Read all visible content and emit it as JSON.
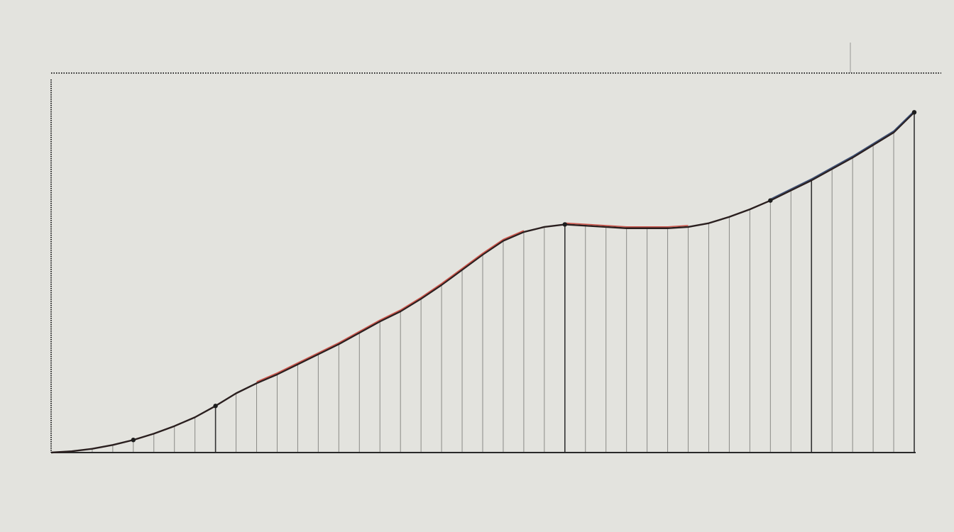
{
  "chart_data": {
    "type": "line",
    "title": "",
    "xlabel": "",
    "ylabel": "",
    "corner_label": "",
    "x": [
      0,
      1,
      2,
      3,
      4,
      5,
      6,
      7,
      8,
      9,
      10,
      11,
      12,
      13,
      14,
      15,
      16,
      17,
      18,
      19,
      20,
      21,
      22,
      23,
      24,
      25,
      26,
      27,
      28,
      29,
      30,
      31,
      32,
      33,
      34,
      35,
      36,
      37,
      38,
      39,
      40,
      41,
      42
    ],
    "values": [
      0.0,
      0.1,
      0.3,
      0.6,
      1.0,
      1.5,
      2.1,
      2.8,
      3.7,
      4.7,
      5.5,
      6.2,
      7.0,
      7.8,
      8.6,
      9.5,
      10.4,
      11.2,
      12.2,
      13.3,
      14.5,
      15.7,
      16.8,
      17.5,
      17.9,
      18.1,
      18.0,
      17.9,
      17.8,
      17.8,
      17.8,
      17.9,
      18.2,
      18.7,
      19.3,
      20.0,
      20.8,
      21.6,
      22.5,
      23.4,
      24.4,
      25.4,
      27.0
    ],
    "highlight_ranges": [
      {
        "color": "#c8473d",
        "from": 10,
        "to": 23
      },
      {
        "color": "#c8473d",
        "from": 25,
        "to": 31
      },
      {
        "color": "#2c3f66",
        "from": 35,
        "to": 42
      }
    ],
    "xlim": [
      0,
      42
    ],
    "ylim": [
      0,
      30
    ],
    "grid": false,
    "legend": "none"
  },
  "colors": {
    "background": "#e3e3de",
    "axis": "#2a2a2a",
    "line": "#2a1f1f",
    "accent_red": "#c8473d",
    "accent_navy": "#2c3f66",
    "drop_line": "#8a8a86"
  }
}
